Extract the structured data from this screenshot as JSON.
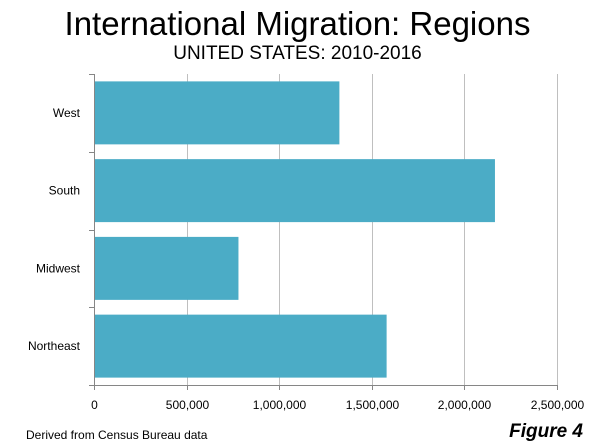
{
  "header": {
    "title": "International Migration: Regions",
    "subtitle": "UNITED STATES: 2010-2016"
  },
  "footer": {
    "source": "Derived from Census Bureau data",
    "figure_label": "Figure 4"
  },
  "chart_data": {
    "type": "bar",
    "orientation": "horizontal",
    "title": "International Migration: Regions",
    "subtitle": "UNITED STATES: 2010-2016",
    "categories": [
      "West",
      "South",
      "Midwest",
      "Northeast"
    ],
    "values": [
      1325000,
      2165000,
      780000,
      1580000
    ],
    "xlim": [
      0,
      2500000
    ],
    "xticks": [
      0,
      500000,
      1000000,
      1500000,
      2000000,
      2500000
    ],
    "xtick_labels": [
      "0",
      "500,000",
      "1,000,000",
      "1,500,000",
      "2,000,000",
      "2,500,000"
    ],
    "grid": "vertical",
    "legend": "none",
    "bar_color": "#4BACC6",
    "grid_color": "#BFBFBF",
    "axis_color": "#868686"
  }
}
